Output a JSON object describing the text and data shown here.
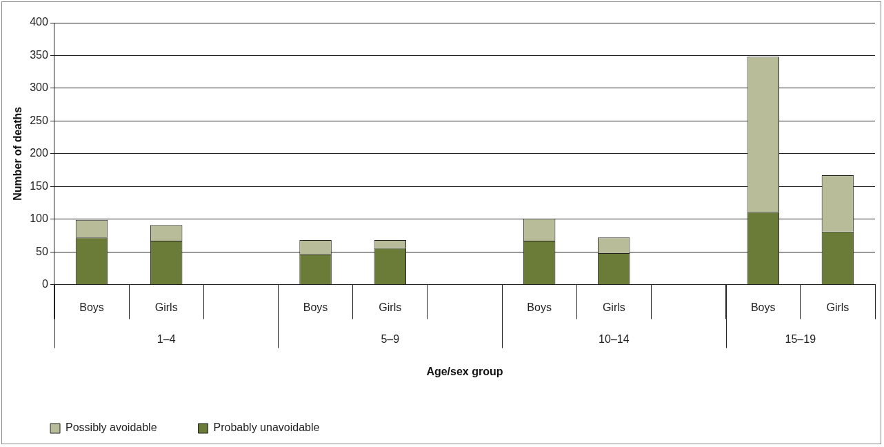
{
  "chart_data": {
    "type": "bar",
    "stacked": true,
    "xlabel": "Age/sex group",
    "ylabel": "Number of deaths",
    "categories": [
      "Boys",
      "Girls",
      null,
      "Boys",
      "Girls",
      null,
      "Boys",
      "Girls",
      null,
      "Boys",
      "Girls"
    ],
    "series": [
      {
        "name": "Probably unavoidable",
        "color": "#6b7c38",
        "values": [
          72,
          67,
          null,
          46,
          56,
          null,
          67,
          48,
          null,
          111,
          81
        ]
      },
      {
        "name": "Possibly avoidable",
        "color": "#b8bc98",
        "values": [
          27,
          24,
          null,
          22,
          12,
          null,
          34,
          24,
          null,
          237,
          86
        ]
      }
    ],
    "annotations": [
      "1–4",
      "5–9",
      "10–14",
      "15–19"
    ],
    "ylim": [
      0,
      400
    ],
    "yticks": [
      0,
      50,
      100,
      150,
      200,
      250,
      300,
      350,
      400
    ],
    "grid": "y",
    "legend": "bottom left"
  }
}
